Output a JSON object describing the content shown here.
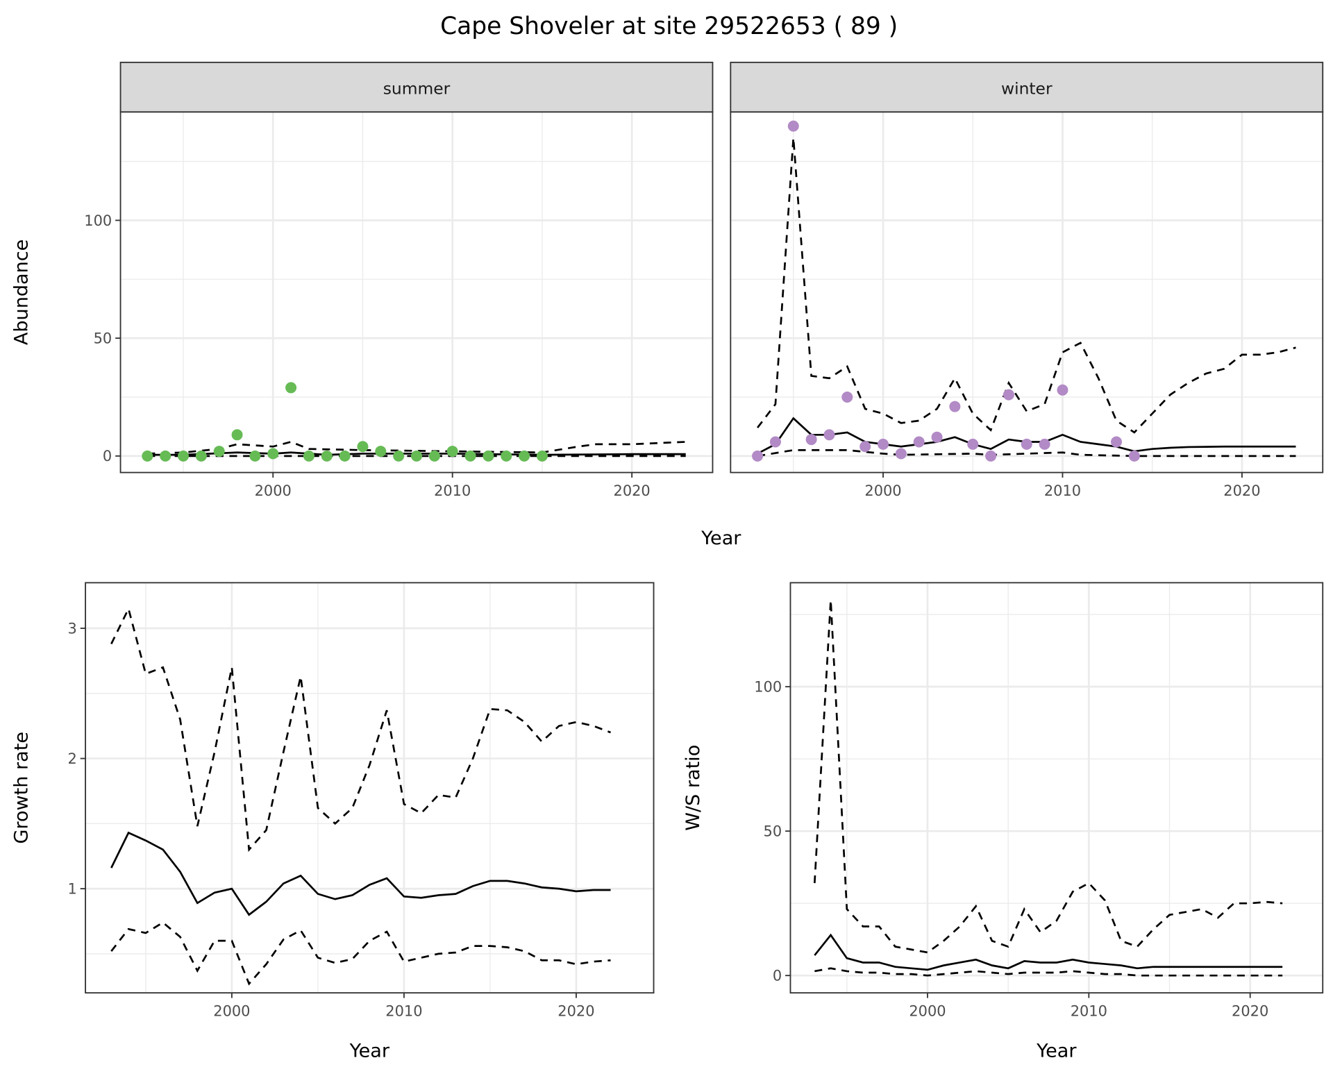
{
  "title": "Cape Shoveler at site 29522653 ( 89 )",
  "colors": {
    "summer": "#66bb55",
    "winter": "#b28ac6",
    "strip": "#d9d9d9"
  },
  "chart_data": [
    {
      "type": "line",
      "facet": "summer",
      "xlabel": "Year",
      "ylabel": "Abundance",
      "xlim": [
        1991.5,
        2024.5
      ],
      "ylim": [
        -7,
        146
      ],
      "xticks": [
        2000,
        2010,
        2020
      ],
      "yticks": [
        0,
        50,
        100
      ],
      "grid": true,
      "points": {
        "x": [
          1993,
          1994,
          1995,
          1996,
          1997,
          1998,
          1999,
          2000,
          2001,
          2002,
          2003,
          2004,
          2005,
          2006,
          2007,
          2008,
          2009,
          2010,
          2011,
          2012,
          2013,
          2014,
          2015
        ],
        "y": [
          0,
          0,
          0,
          0,
          2,
          9,
          0,
          1,
          29,
          0,
          0,
          0,
          4,
          2,
          0,
          0,
          0,
          2,
          0,
          0,
          0,
          0,
          0
        ]
      },
      "series": [
        {
          "name": "mean",
          "style": "solid",
          "x": [
            1993,
            1995,
            1998,
            2000,
            2001,
            2003,
            2005,
            2010,
            2015,
            2020,
            2023
          ],
          "y": [
            0.5,
            0.5,
            1.5,
            1,
            1.5,
            0.5,
            1,
            1,
            0.5,
            0.8,
            0.8
          ]
        },
        {
          "name": "upper",
          "style": "dashed",
          "x": [
            1993,
            1995,
            1997,
            1998,
            2000,
            2001,
            2002,
            2005,
            2010,
            2015,
            2017,
            2018,
            2020,
            2023
          ],
          "y": [
            1,
            1.5,
            3,
            5,
            4,
            6,
            3,
            2.5,
            2,
            1.5,
            4,
            5,
            5,
            6
          ]
        },
        {
          "name": "lower",
          "style": "dashed",
          "x": [
            1993,
            2023
          ],
          "y": [
            0,
            0
          ]
        }
      ]
    },
    {
      "type": "line",
      "facet": "winter",
      "xlabel": "Year",
      "ylabel": "Abundance",
      "xlim": [
        1991.5,
        2024.5
      ],
      "ylim": [
        -7,
        146
      ],
      "xticks": [
        2000,
        2010,
        2020
      ],
      "yticks": [
        0,
        50,
        100
      ],
      "grid": true,
      "points": {
        "x": [
          1993,
          1994,
          1995,
          1996,
          1997,
          1998,
          1999,
          2000,
          2001,
          2002,
          2003,
          2004,
          2005,
          2006,
          2007,
          2008,
          2009,
          2010,
          2013,
          2014
        ],
        "y": [
          0,
          6,
          140,
          7,
          9,
          25,
          4,
          5,
          1,
          6,
          8,
          21,
          5,
          0,
          26,
          5,
          5,
          28,
          6,
          0
        ]
      },
      "series": [
        {
          "name": "mean",
          "style": "solid",
          "x": [
            1993,
            1994,
            1995,
            1996,
            1997,
            1998,
            1999,
            2000,
            2001,
            2002,
            2003,
            2004,
            2005,
            2006,
            2007,
            2008,
            2009,
            2010,
            2011,
            2012,
            2013,
            2014,
            2015,
            2016,
            2017,
            2018,
            2019,
            2020,
            2021,
            2022,
            2023
          ],
          "y": [
            1,
            5,
            16,
            9,
            9,
            10,
            6,
            5,
            4,
            5,
            6,
            8,
            5,
            3,
            7,
            6,
            6,
            9,
            6,
            5,
            4,
            2,
            3,
            3.5,
            3.8,
            3.9,
            4,
            4,
            4,
            4,
            4
          ]
        },
        {
          "name": "upper",
          "style": "dashed",
          "x": [
            1993,
            1994,
            1995,
            1996,
            1997,
            1998,
            1999,
            2000,
            2001,
            2002,
            2003,
            2004,
            2005,
            2006,
            2007,
            2008,
            2009,
            2010,
            2011,
            2012,
            2013,
            2014,
            2015,
            2016,
            2017,
            2018,
            2019,
            2020,
            2021,
            2022,
            2023
          ],
          "y": [
            12,
            22,
            135,
            34,
            33,
            38,
            20,
            18,
            14,
            15,
            20,
            33,
            18,
            11,
            31,
            19,
            22,
            44,
            48,
            33,
            15,
            10,
            18,
            26,
            31,
            35,
            37,
            43,
            43,
            44,
            46
          ]
        },
        {
          "name": "lower",
          "style": "dashed",
          "x": [
            1993,
            1995,
            1998,
            2000,
            2001,
            2005,
            2006,
            2010,
            2011,
            2014,
            2023
          ],
          "y": [
            0,
            2.5,
            2.5,
            1,
            0.5,
            1,
            0.5,
            1.5,
            0.5,
            0,
            0
          ]
        }
      ]
    },
    {
      "type": "line",
      "xlabel": "Year",
      "ylabel": "Growth rate",
      "xlim": [
        1991.5,
        2024.5
      ],
      "ylim": [
        0.2,
        3.35
      ],
      "xticks": [
        2000,
        2010,
        2020
      ],
      "yticks": [
        1,
        2,
        3
      ],
      "grid": true,
      "series": [
        {
          "name": "mean",
          "style": "solid",
          "x": [
            1993,
            1994,
            1995,
            1996,
            1997,
            1998,
            1999,
            2000,
            2001,
            2002,
            2003,
            2004,
            2005,
            2006,
            2007,
            2008,
            2009,
            2010,
            2011,
            2012,
            2013,
            2014,
            2015,
            2016,
            2017,
            2018,
            2019,
            2020,
            2021,
            2022
          ],
          "y": [
            1.16,
            1.43,
            1.37,
            1.3,
            1.13,
            0.89,
            0.97,
            1.0,
            0.8,
            0.9,
            1.04,
            1.1,
            0.96,
            0.92,
            0.95,
            1.03,
            1.08,
            0.94,
            0.93,
            0.95,
            0.96,
            1.02,
            1.06,
            1.06,
            1.04,
            1.01,
            1.0,
            0.98,
            0.99,
            0.99
          ]
        },
        {
          "name": "upper",
          "style": "dashed",
          "x": [
            1993,
            1994,
            1995,
            1996,
            1997,
            1998,
            1999,
            2000,
            2001,
            2002,
            2003,
            2004,
            2005,
            2006,
            2007,
            2008,
            2009,
            2010,
            2011,
            2012,
            2013,
            2014,
            2015,
            2016,
            2017,
            2018,
            2019,
            2020,
            2021,
            2022
          ],
          "y": [
            2.88,
            3.15,
            2.65,
            2.7,
            2.3,
            1.48,
            2.05,
            2.7,
            1.3,
            1.45,
            2.05,
            2.63,
            1.62,
            1.5,
            1.62,
            1.95,
            2.37,
            1.65,
            1.58,
            1.72,
            1.7,
            2.0,
            2.38,
            2.37,
            2.28,
            2.13,
            2.25,
            2.28,
            2.25,
            2.2
          ]
        },
        {
          "name": "lower",
          "style": "dashed",
          "x": [
            1993,
            1994,
            1995,
            1996,
            1997,
            1998,
            1999,
            2000,
            2001,
            2002,
            2003,
            2004,
            2005,
            2006,
            2007,
            2008,
            2009,
            2010,
            2011,
            2012,
            2013,
            2014,
            2015,
            2016,
            2017,
            2018,
            2019,
            2020,
            2021,
            2022
          ],
          "y": [
            0.52,
            0.69,
            0.66,
            0.74,
            0.63,
            0.37,
            0.6,
            0.6,
            0.27,
            0.42,
            0.61,
            0.68,
            0.47,
            0.43,
            0.46,
            0.6,
            0.67,
            0.44,
            0.47,
            0.5,
            0.51,
            0.56,
            0.56,
            0.55,
            0.52,
            0.45,
            0.45,
            0.42,
            0.44,
            0.45
          ]
        }
      ]
    },
    {
      "type": "line",
      "xlabel": "Year",
      "ylabel": "W/S ratio",
      "xlim": [
        1991.5,
        2024.5
      ],
      "ylim": [
        -6,
        136
      ],
      "xticks": [
        2000,
        2010,
        2020
      ],
      "yticks": [
        0,
        50,
        100
      ],
      "grid": true,
      "series": [
        {
          "name": "mean",
          "style": "solid",
          "x": [
            1993,
            1994,
            1995,
            1996,
            1997,
            1998,
            1999,
            2000,
            2001,
            2002,
            2003,
            2004,
            2005,
            2006,
            2007,
            2008,
            2009,
            2010,
            2011,
            2012,
            2013,
            2014,
            2015,
            2016,
            2017,
            2018,
            2019,
            2020,
            2021,
            2022
          ],
          "y": [
            7,
            14,
            6,
            4.5,
            4.5,
            3,
            2.5,
            2,
            3.5,
            4.5,
            5.5,
            3.5,
            2.5,
            5,
            4.5,
            4.5,
            5.5,
            4.5,
            4,
            3.5,
            2.5,
            3,
            3,
            3,
            3,
            3,
            3,
            3,
            3,
            3
          ]
        },
        {
          "name": "upper",
          "style": "dashed",
          "x": [
            1993,
            1994,
            1995,
            1996,
            1997,
            1998,
            1999,
            2000,
            2001,
            2002,
            2003,
            2004,
            2005,
            2006,
            2007,
            2008,
            2009,
            2010,
            2011,
            2012,
            2013,
            2014,
            2015,
            2016,
            2017,
            2018,
            2019,
            2020,
            2021,
            2022
          ],
          "y": [
            32,
            130,
            23,
            17,
            17,
            10,
            9,
            8,
            12,
            17,
            24,
            12,
            10,
            23,
            15,
            19,
            29,
            32,
            26,
            12,
            10,
            16,
            21,
            22,
            23,
            20,
            25,
            25,
            25.5,
            25
          ]
        },
        {
          "name": "lower",
          "style": "dashed",
          "x": [
            1993,
            1994,
            1995,
            1996,
            1997,
            1998,
            1999,
            2000,
            2001,
            2002,
            2003,
            2004,
            2005,
            2006,
            2007,
            2008,
            2009,
            2010,
            2011,
            2012,
            2013,
            2022
          ],
          "y": [
            1.5,
            2.5,
            1.5,
            1,
            1,
            0.5,
            0.5,
            0,
            0.5,
            1,
            1.5,
            1,
            0.5,
            1,
            1,
            1,
            1.5,
            1,
            0.5,
            0.5,
            0,
            0
          ]
        }
      ]
    }
  ]
}
